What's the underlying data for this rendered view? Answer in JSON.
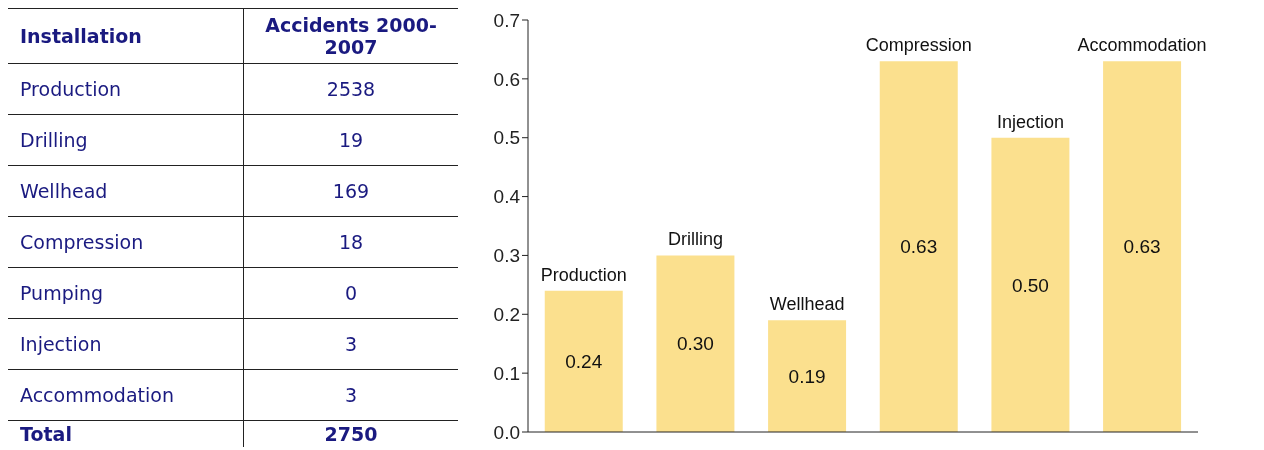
{
  "chart_data": [
    {
      "type": "other",
      "xlabel": "Installation",
      "ylabel": "Accidents 2000-2007",
      "categories": [
        "Production",
        "Drilling",
        "Wellhead",
        "Compression",
        "Pumping",
        "Injection",
        "Accommodation"
      ],
      "values": [
        2538,
        19,
        169,
        18,
        0,
        3,
        3
      ],
      "data_labels": true,
      "annotations": [
        "Total",
        "2750"
      ]
    },
    {
      "type": "bar",
      "categories": [
        "Production",
        "Drilling",
        "Wellhead",
        "Compression",
        "Injection",
        "Accommodation"
      ],
      "values": [
        0.24,
        0.3,
        0.19,
        0.63,
        0.5,
        0.63
      ],
      "value_labels": [
        "0.24",
        "0.30",
        "0.19",
        "0.63",
        "0.50",
        "0.63"
      ],
      "color": "#fbe08e",
      "ylim": [
        0,
        0.7
      ],
      "yticks": [
        {
          "value": 0,
          "label": "0.0"
        },
        {
          "value": 0.1,
          "label": "0.1"
        },
        {
          "value": 0.2,
          "label": "0.2"
        },
        {
          "value": 0.3,
          "label": "0.3"
        },
        {
          "value": 0.4,
          "label": "0.4"
        },
        {
          "value": 0.5,
          "label": "0.5"
        },
        {
          "value": 0.6,
          "label": "0.6"
        },
        {
          "value": 0.7,
          "label": "0.7"
        }
      ],
      "grid": false,
      "legend": false
    }
  ]
}
